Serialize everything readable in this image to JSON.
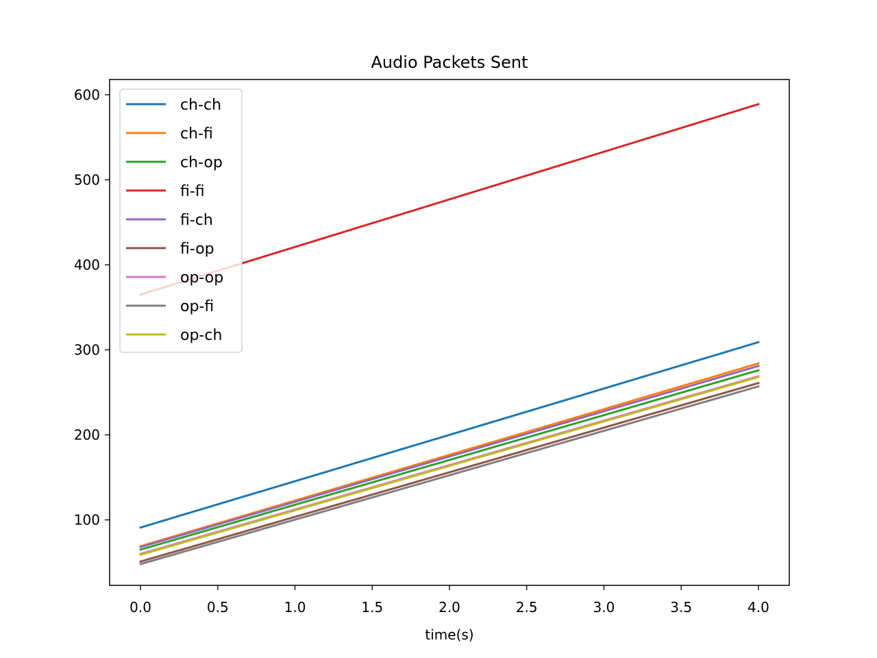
{
  "chart_data": {
    "type": "line",
    "title": "Audio Packets Sent",
    "xlabel": "time(s)",
    "ylabel": "",
    "xlim": [
      -0.2,
      4.2
    ],
    "ylim": [
      23,
      618
    ],
    "xticks": [
      0.0,
      0.5,
      1.0,
      1.5,
      2.0,
      2.5,
      3.0,
      3.5,
      4.0
    ],
    "xtick_labels": [
      "0.0",
      "0.5",
      "1.0",
      "1.5",
      "2.0",
      "2.5",
      "3.0",
      "3.5",
      "4.0"
    ],
    "yticks": [
      100,
      200,
      300,
      400,
      500,
      600
    ],
    "ytick_labels": [
      "100",
      "200",
      "300",
      "400",
      "500",
      "600"
    ],
    "grid": false,
    "legend_position": "upper-left",
    "x": [
      0,
      4
    ],
    "series": [
      {
        "name": "ch-ch",
        "color": "#1f77b4",
        "values": [
          91,
          309
        ]
      },
      {
        "name": "ch-fi",
        "color": "#ff7f0e",
        "values": [
          69,
          284
        ]
      },
      {
        "name": "ch-op",
        "color": "#2ca02c",
        "values": [
          65,
          276
        ]
      },
      {
        "name": "fi-fi",
        "color": "#d62728",
        "values": [
          365,
          589
        ]
      },
      {
        "name": "fi-ch",
        "color": "#9467bd",
        "values": [
          68,
          281
        ]
      },
      {
        "name": "fi-op",
        "color": "#8c564b",
        "values": [
          51,
          261
        ]
      },
      {
        "name": "op-op",
        "color": "#e377c2",
        "values": [
          60,
          269
        ]
      },
      {
        "name": "op-fi",
        "color": "#7f7f7f",
        "values": [
          48,
          257
        ]
      },
      {
        "name": "op-ch",
        "color": "#bcbd22",
        "values": [
          59,
          268
        ]
      }
    ]
  }
}
